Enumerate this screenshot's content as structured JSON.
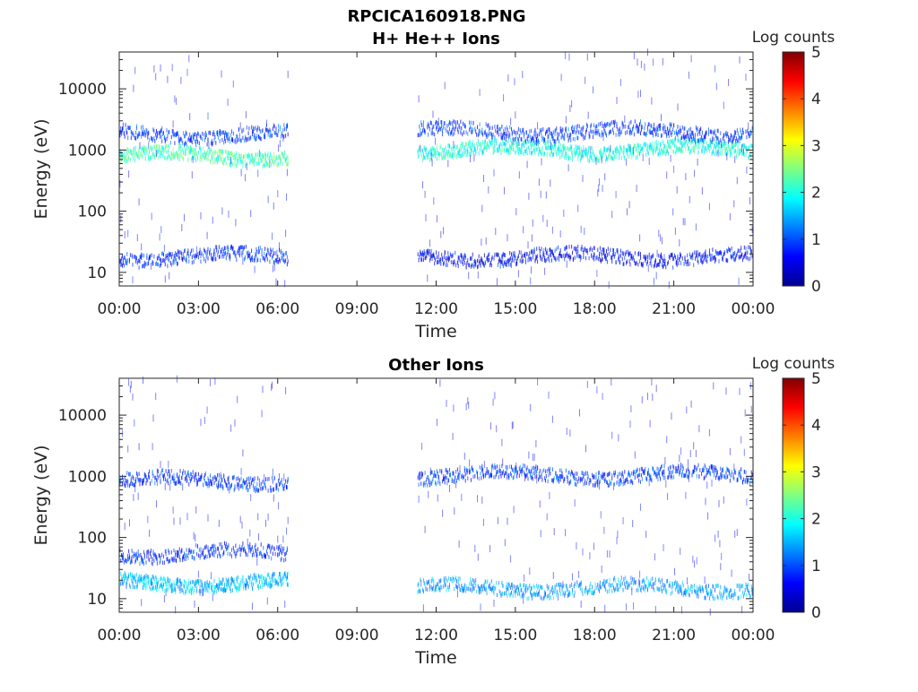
{
  "figure": {
    "title": "RPCICA160918.PNG"
  },
  "chart_data": [
    {
      "type": "heatmap",
      "title": "H+ He++ Ions",
      "xlabel": "Time",
      "ylabel": "Energy (eV)",
      "x_ticks": [
        "00:00",
        "03:00",
        "06:00",
        "09:00",
        "12:00",
        "15:00",
        "18:00",
        "21:00",
        "00:00"
      ],
      "xlim_hours": [
        0,
        24
      ],
      "y_ticks": [
        {
          "value": 10,
          "label": "10"
        },
        {
          "value": 100,
          "label": "100"
        },
        {
          "value": 1000,
          "label": "1000"
        },
        {
          "value": 10000,
          "label": "10000"
        }
      ],
      "y_scale": "log",
      "ylim": [
        6,
        40000
      ],
      "data_gaps_hours": [
        [
          6.4,
          11.3
        ]
      ],
      "colorbar": {
        "label": "Log counts",
        "ticks": [
          "0",
          "1",
          "2",
          "3",
          "4",
          "5"
        ],
        "range": [
          0,
          5
        ],
        "colormap": "jet"
      },
      "bands": [
        {
          "segment": [
            0,
            6.4
          ],
          "energy_center": 800,
          "log_counts": 2.2
        },
        {
          "segment": [
            11.3,
            24
          ],
          "energy_center": 1000,
          "log_counts": 2.0
        },
        {
          "segment": [
            0,
            6.4
          ],
          "energy_center": 1800,
          "log_counts": 0.9
        },
        {
          "segment": [
            11.3,
            24
          ],
          "energy_center": 2000,
          "log_counts": 0.9
        },
        {
          "segment": [
            0,
            6.4
          ],
          "energy_center": 18,
          "log_counts": 0.8
        },
        {
          "segment": [
            11.3,
            24
          ],
          "energy_center": 18,
          "log_counts": 0.6
        }
      ]
    },
    {
      "type": "heatmap",
      "title": "Other Ions",
      "xlabel": "Time",
      "ylabel": "Energy (eV)",
      "x_ticks": [
        "00:00",
        "03:00",
        "06:00",
        "09:00",
        "12:00",
        "15:00",
        "18:00",
        "21:00",
        "00:00"
      ],
      "xlim_hours": [
        0,
        24
      ],
      "y_ticks": [
        {
          "value": 10,
          "label": "10"
        },
        {
          "value": 100,
          "label": "100"
        },
        {
          "value": 1000,
          "label": "1000"
        },
        {
          "value": 10000,
          "label": "10000"
        }
      ],
      "y_scale": "log",
      "ylim": [
        6,
        40000
      ],
      "data_gaps_hours": [
        [
          6.4,
          11.3
        ]
      ],
      "colorbar": {
        "label": "Log counts",
        "ticks": [
          "0",
          "1",
          "2",
          "3",
          "4",
          "5"
        ],
        "range": [
          0,
          5
        ],
        "colormap": "jet"
      },
      "bands": [
        {
          "segment": [
            0,
            6.4
          ],
          "energy_center": 850,
          "log_counts": 0.9
        },
        {
          "segment": [
            11.3,
            24
          ],
          "energy_center": 1050,
          "log_counts": 0.9
        },
        {
          "segment": [
            0,
            6.4
          ],
          "energy_center": 18,
          "log_counts": 1.6
        },
        {
          "segment": [
            11.3,
            24
          ],
          "energy_center": 15,
          "log_counts": 1.4
        },
        {
          "segment": [
            0,
            6.4
          ],
          "energy_center": 55,
          "log_counts": 0.8
        }
      ]
    }
  ]
}
